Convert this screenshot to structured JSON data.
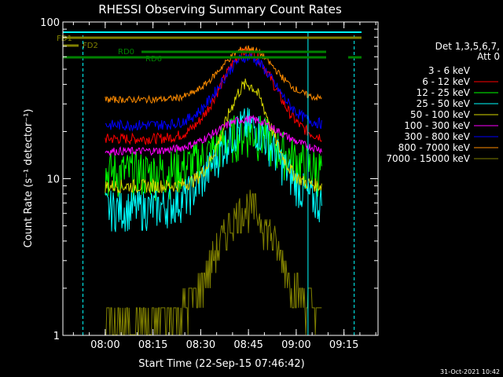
{
  "chart_data": {
    "type": "line",
    "title": "RHESSI Observing Summary Count Rates",
    "xlabel": "Start Time (22-Sep-15 07:46:42)",
    "ylabel": "Count Rate (s⁻¹ detector⁻¹)",
    "y_scale": "log",
    "ylim": [
      1,
      100
    ],
    "xlim_minutes_after_start": [
      0,
      99
    ],
    "x_ticks": [
      {
        "label": "08:00",
        "minute": 13.3
      },
      {
        "label": "08:15",
        "minute": 28.3
      },
      {
        "label": "08:30",
        "minute": 43.3
      },
      {
        "label": "08:45",
        "minute": 58.3
      },
      {
        "label": "09:00",
        "minute": 73.3
      },
      {
        "label": "09:15",
        "minute": 88.3
      }
    ],
    "y_ticks": [
      {
        "label": "1",
        "value": 1
      },
      {
        "label": "10",
        "value": 10
      },
      {
        "label": "100",
        "value": 100
      }
    ],
    "legend_header": [
      "Det 1,3,5,6,7,",
      "Att 0"
    ],
    "legend_position": "right",
    "series": [
      {
        "name": "3 - 6 keV",
        "color": "#000000"
      },
      {
        "name": "6 - 12 keV",
        "color": "#ff0000"
      },
      {
        "name": "12 - 25 keV",
        "color": "#00ff00"
      },
      {
        "name": "25 - 50 keV",
        "color": "#00ffff"
      },
      {
        "name": "50 - 100 keV",
        "color": "#d8d800"
      },
      {
        "name": "100 - 300 keV",
        "color": "#ff00ff"
      },
      {
        "name": "300 - 800 keV",
        "color": "#0000ff"
      },
      {
        "name": "800 - 7000 keV",
        "color": "#ff8c00"
      },
      {
        "name": "7000 - 15000 keV",
        "color": "#808000"
      }
    ],
    "flag_labels": [
      {
        "text": "FD1",
        "color": "#808000"
      },
      {
        "text": "FD2",
        "color": "#808000"
      },
      {
        "text": "RD0",
        "color": "#008000"
      },
      {
        "text": "RD6",
        "color": "#008000"
      }
    ]
  },
  "footer": {
    "timestamp": "31-Oct-2021 10:42"
  }
}
